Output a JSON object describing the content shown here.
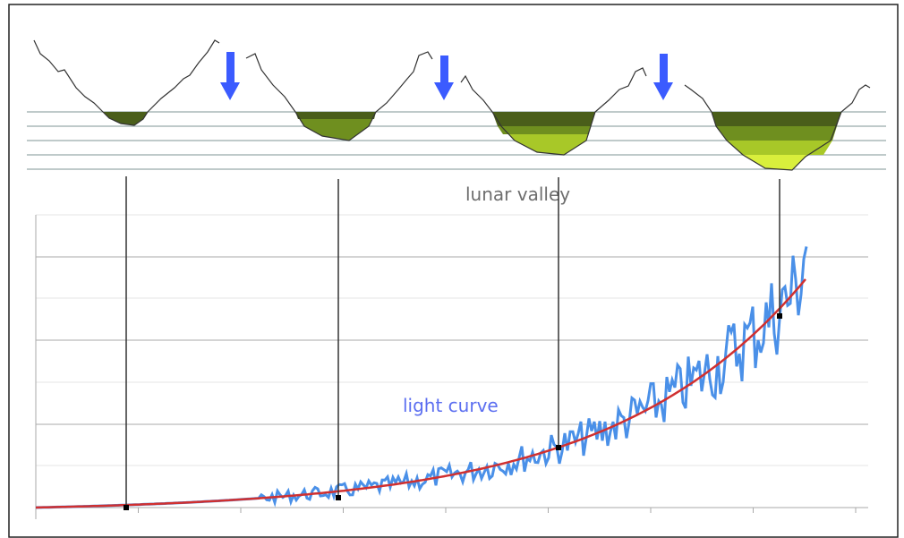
{
  "labels": {
    "valley": "lunar valley",
    "curve": "light curve"
  }
}
